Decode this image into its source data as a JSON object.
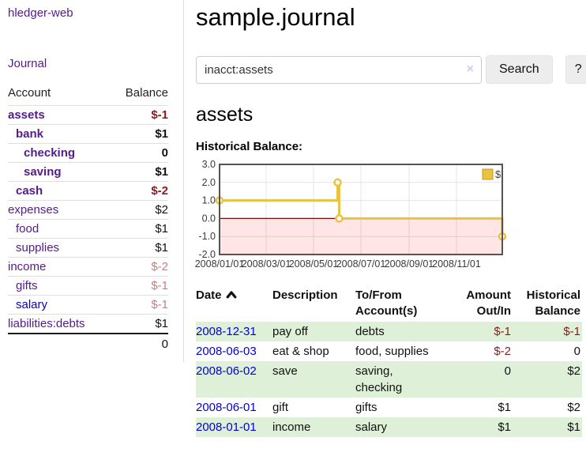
{
  "app": {
    "brand": "hledger-web",
    "nav_journal": "Journal"
  },
  "sidebar": {
    "header": {
      "account": "Account",
      "balance": "Balance"
    },
    "accounts": [
      {
        "name": "assets",
        "balance": "$-1",
        "level": 1,
        "bold": true,
        "name_color": "purple",
        "balance_color": "negative"
      },
      {
        "name": "bank",
        "balance": "$1",
        "level": 2,
        "bold": true,
        "name_color": "purple",
        "balance_color": "normal"
      },
      {
        "name": "checking",
        "balance": "0",
        "level": 3,
        "bold": true,
        "name_color": "purple",
        "balance_color": "normal"
      },
      {
        "name": "saving",
        "balance": "$1",
        "level": 3,
        "bold": true,
        "name_color": "purple",
        "balance_color": "normal"
      },
      {
        "name": "cash",
        "balance": "$-2",
        "level": 2,
        "bold": true,
        "name_color": "purple",
        "balance_color": "negative"
      },
      {
        "name": "expenses",
        "balance": "$2",
        "level": 1,
        "bold": false,
        "name_color": "purple",
        "balance_color": "normal"
      },
      {
        "name": "food",
        "balance": "$1",
        "level": 2,
        "bold": false,
        "name_color": "purple",
        "balance_color": "normal"
      },
      {
        "name": "supplies",
        "balance": "$1",
        "level": 2,
        "bold": false,
        "name_color": "purple",
        "balance_color": "normal"
      },
      {
        "name": "income",
        "balance": "$-2",
        "level": 1,
        "bold": false,
        "name_color": "purple",
        "balance_color": "muted"
      },
      {
        "name": "gifts",
        "balance": "$-1",
        "level": 2,
        "bold": false,
        "name_color": "purple",
        "balance_color": "muted"
      },
      {
        "name": "salary",
        "balance": "$-1",
        "level": 2,
        "bold": false,
        "name_color": "blue",
        "balance_color": "muted"
      },
      {
        "name": "liabilities:debts",
        "balance": "$1",
        "level": 1,
        "bold": false,
        "name_color": "purple",
        "balance_color": "normal"
      }
    ],
    "total": "0"
  },
  "main": {
    "title": "sample.journal",
    "search": {
      "value": "inacct:assets",
      "clear_icon": "×",
      "button_label": "Search",
      "help_label": "?"
    },
    "account_heading": "assets",
    "chart_label": "Historical Balance:"
  },
  "chart_data": {
    "type": "line",
    "step": true,
    "title": "Historical Balance:",
    "series": [
      {
        "name": "$",
        "color": "#e9c23f",
        "points": [
          {
            "date": "2008-01-01",
            "day": 0,
            "value": 1
          },
          {
            "date": "2008-06-01",
            "day": 152,
            "value": 2
          },
          {
            "date": "2008-06-03",
            "day": 154,
            "value": 0
          },
          {
            "date": "2008-12-31",
            "day": 364,
            "value": -1
          }
        ]
      }
    ],
    "x_range_days": [
      0,
      364
    ],
    "x_ticks": [
      {
        "day": 0,
        "label": "2008/01/01"
      },
      {
        "day": 60,
        "label": "2008/03/01"
      },
      {
        "day": 121,
        "label": "2008/05/01"
      },
      {
        "day": 182,
        "label": "2008/07/01"
      },
      {
        "day": 244,
        "label": "2008/09/01"
      },
      {
        "day": 305,
        "label": "2008/11/01"
      }
    ],
    "y_ticks": [
      3.0,
      2.0,
      1.0,
      0.0,
      -1.0,
      -2.0
    ],
    "ylim": [
      -2,
      3
    ],
    "grid": true,
    "legend": {
      "label": "$",
      "position": "top-right"
    },
    "colors": {
      "border": "#545454",
      "gridline": "#e4e4e4",
      "negative_region": "rgba(255,0,0,0.10)",
      "zero_line": "#7a0d0d",
      "tick_text": "#3a3a3a"
    }
  },
  "table": {
    "headers": [
      {
        "label": "Date",
        "text": "Date",
        "align": "left",
        "sorted": "ascending"
      },
      {
        "label": "Description",
        "text": "Description",
        "align": "left"
      },
      {
        "label": "To/From Account(s)",
        "text": "To/From\nAccount(s)",
        "align": "left"
      },
      {
        "label": "Amount Out/In",
        "text": "Amount\nOut/In",
        "align": "right"
      },
      {
        "label": "Historical Balance",
        "text": "Historical\nBalance",
        "align": "right"
      }
    ],
    "rows": [
      {
        "date": "2008-12-31",
        "description": "pay off",
        "accounts": "debts",
        "amount": "$-1",
        "balance": "$-1",
        "highlighted": true
      },
      {
        "date": "2008-06-03",
        "description": "eat & shop",
        "accounts": "food, supplies",
        "amount": "$-2",
        "balance": "0",
        "highlighted": false
      },
      {
        "date": "2008-06-02",
        "description": "save",
        "accounts": "saving,\nchecking",
        "amount": "0",
        "balance": "$2",
        "highlighted": true
      },
      {
        "date": "2008-06-01",
        "description": "gift",
        "accounts": "gifts",
        "amount": "$1",
        "balance": "$2",
        "highlighted": false
      },
      {
        "date": "2008-01-01",
        "description": "income",
        "accounts": "salary",
        "amount": "$1",
        "balance": "$1",
        "highlighted": true
      }
    ]
  },
  "colors": {
    "link_purple": "#551a8b",
    "link_blue": "#0000dd",
    "negative_red": "#8b1a1a",
    "muted_negative_red": "#c1807e",
    "row_highlight_green": "#dff0d8",
    "chart_line_gold": "#e9c23f"
  }
}
